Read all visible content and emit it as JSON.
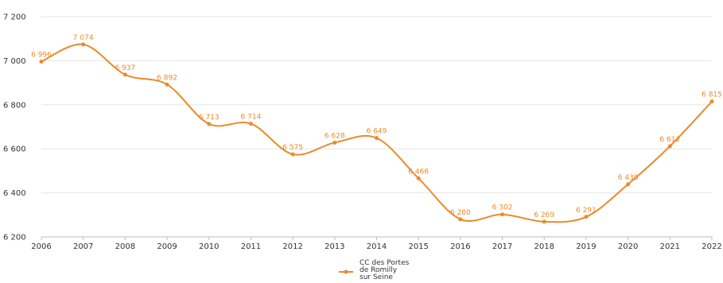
{
  "chart_data": {
    "type": "line",
    "x": [
      "2006",
      "2007",
      "2008",
      "2009",
      "2010",
      "2011",
      "2012",
      "2013",
      "2014",
      "2015",
      "2016",
      "2017",
      "2018",
      "2019",
      "2020",
      "2021",
      "2022"
    ],
    "series": [
      {
        "name": "CC des Portes de Romilly sur Seine",
        "values": [
          6996,
          7074,
          6937,
          6892,
          6713,
          6714,
          6575,
          6628,
          6649,
          6466,
          6280,
          6302,
          6269,
          6291,
          6439,
          6612,
          6815
        ],
        "labels": [
          "6 996",
          "7 074",
          "6 937",
          "6 892",
          "6 713",
          "6 714",
          "6 575",
          "6 628",
          "6 649",
          "6 466",
          "6 280",
          "6 302",
          "6 269",
          "6 291",
          "6 439",
          "6 612",
          "6 815"
        ]
      }
    ],
    "y_ticks": [
      6200,
      6400,
      6600,
      6800,
      7000,
      7200
    ],
    "y_tick_labels": [
      "6 200",
      "6 400",
      "6 600",
      "6 800",
      "7 000",
      "7 200"
    ],
    "ylim": [
      6200,
      7200
    ],
    "grid": true,
    "legend_position": "bottom-center",
    "legend_lines": [
      "CC des Portes",
      "de Romilly",
      "sur Seine"
    ],
    "colors": {
      "series": "#ec8a2a",
      "grid": "#e6e6e6",
      "axis": "#bbbbbb"
    }
  }
}
